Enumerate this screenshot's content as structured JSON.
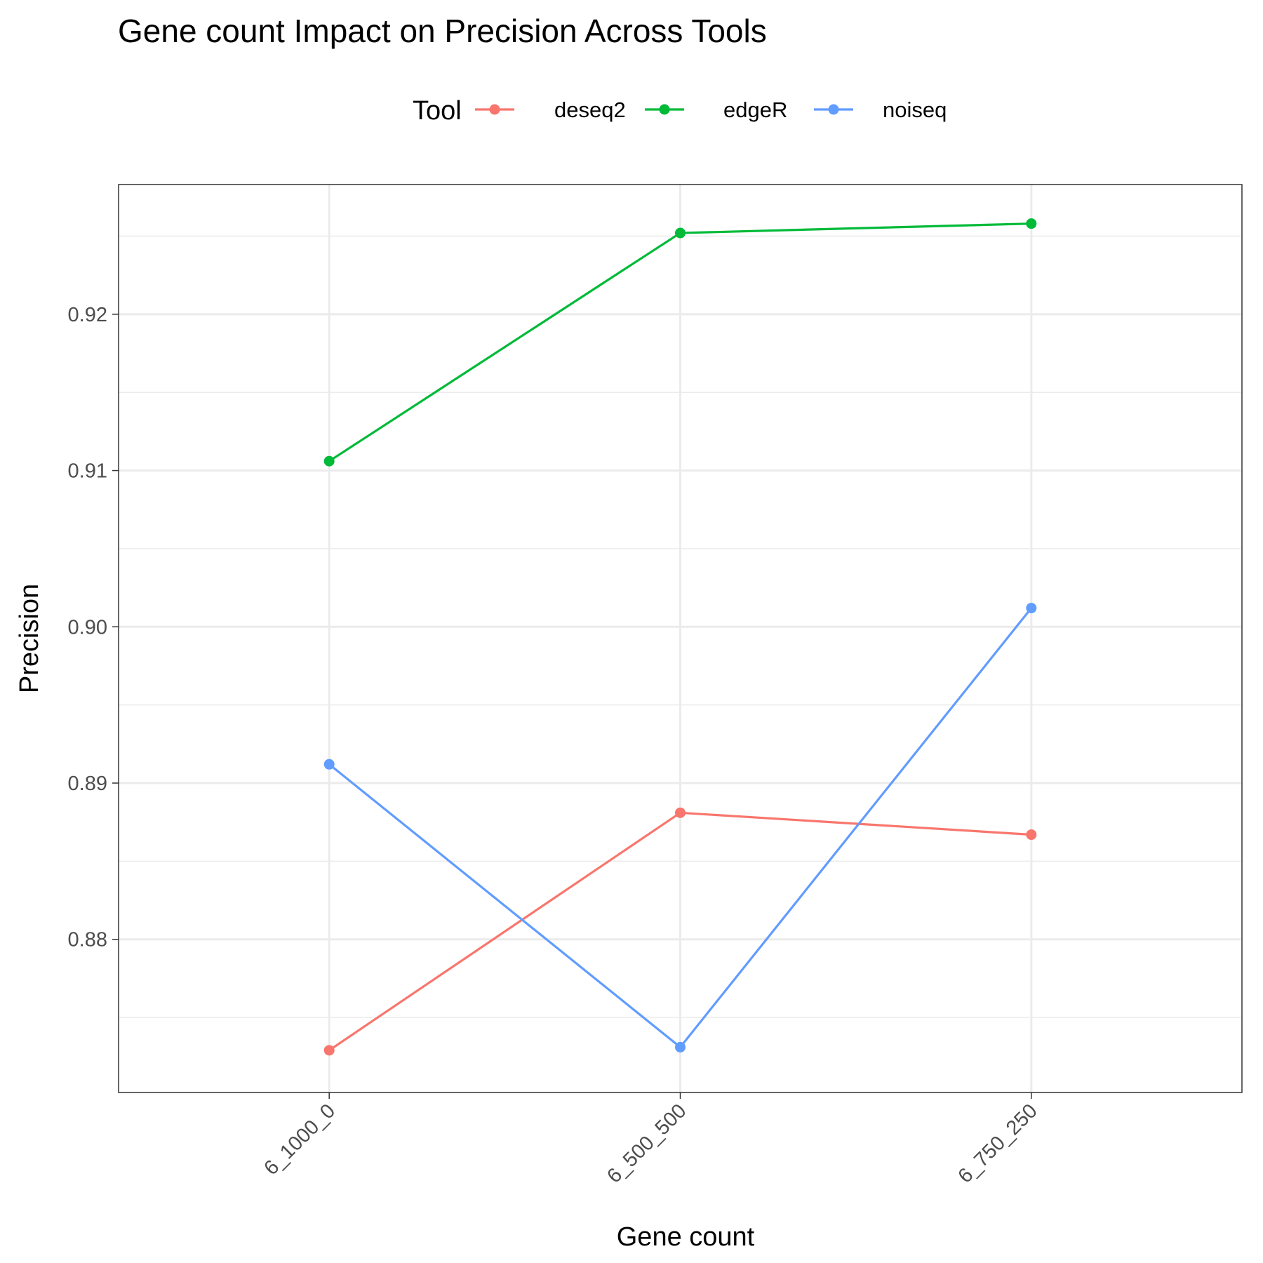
{
  "chart_data": {
    "type": "line",
    "title": "Gene count Impact on Precision Across Tools",
    "xlabel": "Gene count",
    "ylabel": "Precision",
    "legend_title": "Tool",
    "legend_position": "top",
    "categories": [
      "6_1000_0",
      "6_500_500",
      "6_750_250"
    ],
    "ylim": [
      0.8702,
      0.9283
    ],
    "y_ticks": [
      0.88,
      0.89,
      0.9,
      0.91,
      0.92
    ],
    "y_tick_labels": [
      "0.88",
      "0.89",
      "0.90",
      "0.91",
      "0.92"
    ],
    "grid": true,
    "series": [
      {
        "name": "deseq2",
        "color": "#F8766D",
        "values": [
          0.8729,
          0.8881,
          0.8867
        ]
      },
      {
        "name": "edgeR",
        "color": "#00BA38",
        "values": [
          0.9106,
          0.9252,
          0.9258
        ]
      },
      {
        "name": "noiseq",
        "color": "#619CFF",
        "values": [
          0.8912,
          0.8731,
          0.9012
        ]
      }
    ]
  }
}
